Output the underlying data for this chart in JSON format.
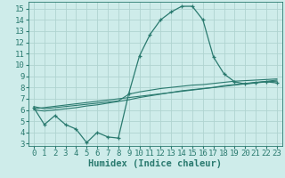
{
  "xlabel": "Humidex (Indice chaleur)",
  "bg_color": "#ceecea",
  "grid_color": "#b0d4d0",
  "line_color": "#2a7a6f",
  "x_ticks": [
    0,
    1,
    2,
    3,
    4,
    5,
    6,
    7,
    8,
    9,
    10,
    11,
    12,
    13,
    14,
    15,
    16,
    17,
    18,
    19,
    20,
    21,
    22,
    23
  ],
  "y_ticks": [
    3,
    4,
    5,
    6,
    7,
    8,
    9,
    10,
    11,
    12,
    13,
    14,
    15
  ],
  "ylim": [
    2.8,
    15.6
  ],
  "xlim": [
    -0.5,
    23.5
  ],
  "line1_x": [
    0,
    1,
    2,
    3,
    4,
    5,
    6,
    7,
    8,
    9,
    10,
    11,
    12,
    13,
    14,
    15,
    16,
    17,
    18,
    19,
    20,
    21,
    22,
    23
  ],
  "line1_y": [
    6.2,
    4.7,
    5.5,
    4.7,
    4.3,
    3.1,
    4.0,
    3.6,
    3.5,
    7.5,
    10.8,
    12.7,
    14.0,
    14.7,
    15.2,
    15.2,
    14.0,
    10.7,
    9.2,
    8.5,
    8.3,
    8.4,
    8.5,
    8.4
  ],
  "line2_x": [
    0,
    1,
    2,
    3,
    4,
    5,
    6,
    7,
    8,
    9,
    10,
    11,
    12,
    13,
    14,
    15,
    16,
    17,
    18,
    19,
    20,
    21,
    22,
    23
  ],
  "line2_y": [
    6.0,
    5.9,
    6.0,
    6.1,
    6.2,
    6.35,
    6.45,
    6.6,
    6.75,
    6.9,
    7.1,
    7.25,
    7.4,
    7.55,
    7.7,
    7.8,
    7.9,
    8.0,
    8.15,
    8.25,
    8.35,
    8.45,
    8.5,
    8.55
  ],
  "line3_x": [
    0,
    1,
    2,
    3,
    4,
    5,
    6,
    7,
    8,
    9,
    10,
    11,
    12,
    13,
    14,
    15,
    16,
    17,
    18,
    19,
    20,
    21,
    22,
    23
  ],
  "line3_y": [
    6.3,
    6.1,
    6.2,
    6.3,
    6.4,
    6.5,
    6.6,
    6.7,
    6.8,
    7.4,
    7.6,
    7.75,
    7.9,
    8.0,
    8.1,
    8.2,
    8.25,
    8.35,
    8.45,
    8.55,
    8.6,
    8.65,
    8.7,
    8.75
  ],
  "line4_x": [
    0,
    23
  ],
  "line4_y": [
    6.1,
    8.65
  ],
  "tick_fontsize": 6.5,
  "label_fontsize": 7.5
}
